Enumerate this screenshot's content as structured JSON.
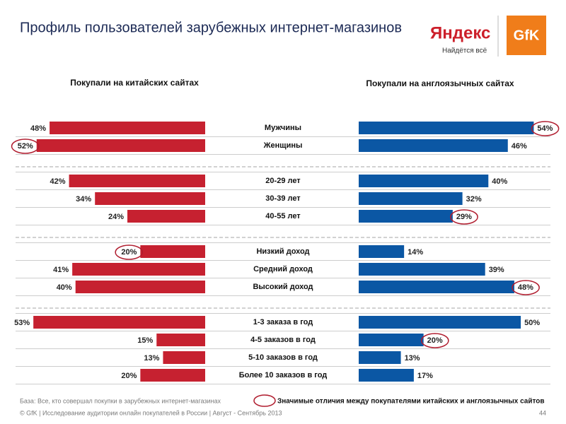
{
  "chart_data": {
    "type": "butterfly_bar",
    "title": "Профиль пользователей зарубежных интернет-магазинов",
    "categories": [
      "Мужчины",
      "Женщины",
      "20-29 лет",
      "30-39 лет",
      "40-55 лет",
      "Низкий доход",
      "Средний доход",
      "Высокий доход",
      "1-3 заказа в год",
      "4-5 заказов в год",
      "5-10 заказов в год",
      "Более 10 заказов в год"
    ],
    "series": [
      {
        "name": "Покупали на китайских сайтах",
        "color": "#c62130",
        "values": [
          48,
          52,
          42,
          34,
          24,
          20,
          41,
          40,
          53,
          15,
          13,
          20
        ],
        "value_labels": [
          "48%",
          "52%",
          "42%",
          "34%",
          "24%",
          "20%",
          "41%",
          "40%",
          "53%",
          "15%",
          "13%",
          "20%"
        ],
        "highlight": [
          1,
          5
        ]
      },
      {
        "name": "Покупали на англоязычных сайтах",
        "color": "#0b57a4",
        "values": [
          54,
          46,
          40,
          32,
          29,
          14,
          39,
          48,
          50,
          20,
          13,
          17
        ],
        "value_labels": [
          "54%",
          "46%",
          "40%",
          "32%",
          "29%",
          "14%",
          "39%",
          "48%",
          "50%",
          "20%",
          "13%",
          "17%"
        ],
        "highlight": [
          0,
          4,
          7,
          9
        ]
      }
    ],
    "xlim": [
      0,
      55
    ],
    "highlight_label": "Значимые отличия между  покупателями китайских и англоязычных сайтов",
    "highlight_color": "#b01c2e",
    "base_note": "База: Все, кто совершал покупки в зарубежных интернет-магазинах"
  },
  "logos": {
    "yandex": "Яндекс",
    "yandex_slogan": "Найдётся всё",
    "gfk": "GfK"
  },
  "footer": {
    "text": "© GfK | Исследование аудитории онлайн покупателей в России | Август - Сентябрь 2013",
    "page": "44"
  }
}
